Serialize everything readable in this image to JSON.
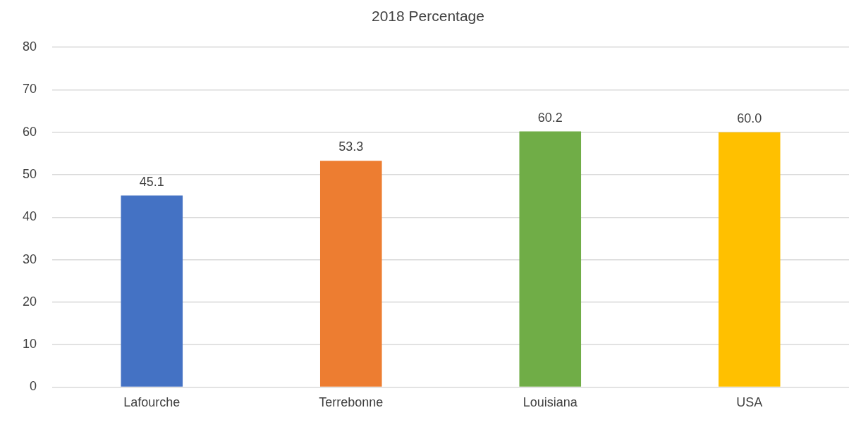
{
  "chart_data": {
    "type": "bar",
    "title": "2018 Percentage",
    "categories": [
      "Lafourche",
      "Terrebonne",
      "Louisiana",
      "USA"
    ],
    "values": [
      45.1,
      53.3,
      60.2,
      60.0
    ],
    "colors": [
      "#4472c4",
      "#ed7d31",
      "#70ad47",
      "#ffc000"
    ],
    "value_labels": [
      "45.1",
      "53.3",
      "60.2",
      "60.0"
    ],
    "ylim": [
      0,
      80
    ],
    "yticks": [
      0,
      10,
      20,
      30,
      40,
      50,
      60,
      70,
      80
    ],
    "grid": "y",
    "legend": false
  }
}
